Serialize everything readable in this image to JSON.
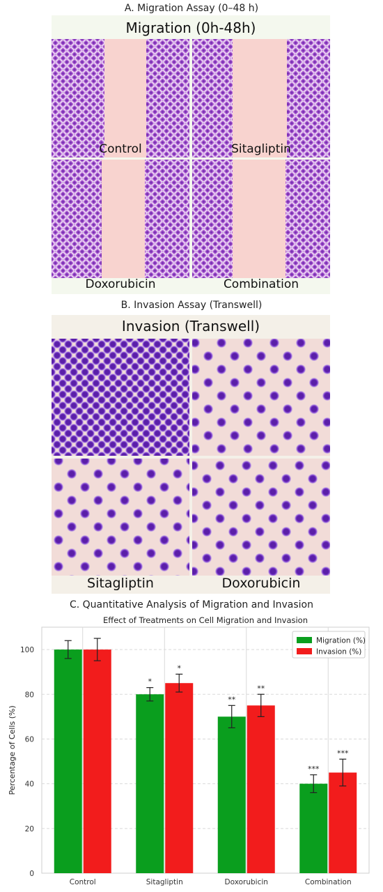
{
  "panel_a": {
    "title": "A. Migration Assay (0–48 h)",
    "header": "Migration (0h-48h)",
    "captions": [
      "Control",
      "Sitagliptin",
      "Doxorubicin",
      "Combination"
    ]
  },
  "panel_b": {
    "title": "B. Invasion Assay (Transwell)",
    "header": "Invasion (Transwell)",
    "captions": [
      "Sitagliptin",
      "Doxorubicin"
    ]
  },
  "panel_c": {
    "title": "C. Quantitative Analysis of Migration and Invasion"
  },
  "chart_data": {
    "type": "bar",
    "title": "Effect of Treatments on Cell Migration and Invasion",
    "xlabel": "",
    "ylabel": "Percentage of Cells (%)",
    "ylim": [
      0,
      110
    ],
    "yticks": [
      0,
      20,
      40,
      60,
      80,
      100
    ],
    "categories": [
      "Control",
      "Sitagliptin",
      "Doxorubicin",
      "Combination"
    ],
    "series": [
      {
        "name": "Migration (%)",
        "color": "#0a9e1e",
        "values": [
          100,
          80,
          70,
          40
        ],
        "errors": [
          4,
          3,
          5,
          4
        ],
        "significance": [
          "",
          "*",
          "**",
          "***"
        ]
      },
      {
        "name": "Invasion (%)",
        "color": "#f21c1c",
        "values": [
          100,
          85,
          75,
          45
        ],
        "errors": [
          5,
          4,
          5,
          6
        ],
        "significance": [
          "",
          "*",
          "**",
          "***"
        ]
      }
    ],
    "grid": true,
    "legend": "top-right"
  }
}
